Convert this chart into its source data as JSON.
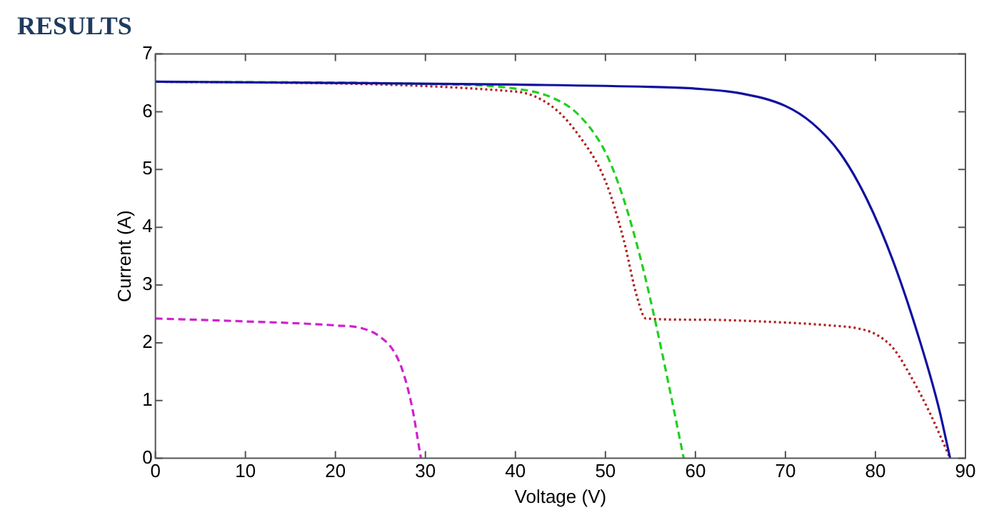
{
  "chart_data": {
    "type": "line",
    "title": "RESULTS",
    "xlabel": "Voltage (V)",
    "ylabel": "Current (A)",
    "xlim": [
      0,
      90
    ],
    "xticks": [
      0,
      10,
      20,
      30,
      40,
      50,
      60,
      70,
      80,
      90
    ],
    "ylim": [
      0,
      7
    ],
    "yticks": [
      0,
      1,
      2,
      3,
      4,
      5,
      6,
      7
    ],
    "grid": false,
    "legend": false,
    "marker": "none",
    "series": [
      {
        "color": "#1010a0",
        "line_style": "solid",
        "x": [
          0,
          20,
          40,
          55,
          60,
          65,
          70,
          73,
          76,
          79,
          82,
          85,
          87,
          88.3
        ],
        "values": [
          6.52,
          6.5,
          6.47,
          6.43,
          6.4,
          6.32,
          6.1,
          5.8,
          5.3,
          4.5,
          3.4,
          2.0,
          0.9,
          0
        ]
      },
      {
        "color": "#20d020",
        "line_style": "dashed",
        "x": [
          0,
          30,
          40,
          44,
          47,
          50,
          52,
          54,
          55.5,
          57,
          58.7
        ],
        "values": [
          6.52,
          6.48,
          6.4,
          6.25,
          5.95,
          5.3,
          4.5,
          3.4,
          2.4,
          1.3,
          0
        ]
      },
      {
        "color": "#b02020",
        "line_style": "dotted",
        "x": [
          0,
          40,
          44,
          47,
          50,
          52,
          53.5,
          54.5,
          60,
          70,
          75,
          78,
          80,
          82,
          84,
          86,
          88.3
        ],
        "values": [
          6.52,
          6.35,
          6.1,
          5.6,
          4.8,
          3.8,
          2.8,
          2.42,
          2.4,
          2.35,
          2.3,
          2.25,
          2.15,
          1.9,
          1.4,
          0.8,
          0
        ]
      },
      {
        "color": "#d020d0",
        "line_style": "dashed",
        "x": [
          0,
          10,
          20,
          23,
          25,
          26.5,
          27.5,
          28.5,
          29.5
        ],
        "values": [
          2.42,
          2.37,
          2.3,
          2.25,
          2.1,
          1.85,
          1.5,
          0.9,
          0
        ]
      }
    ]
  }
}
